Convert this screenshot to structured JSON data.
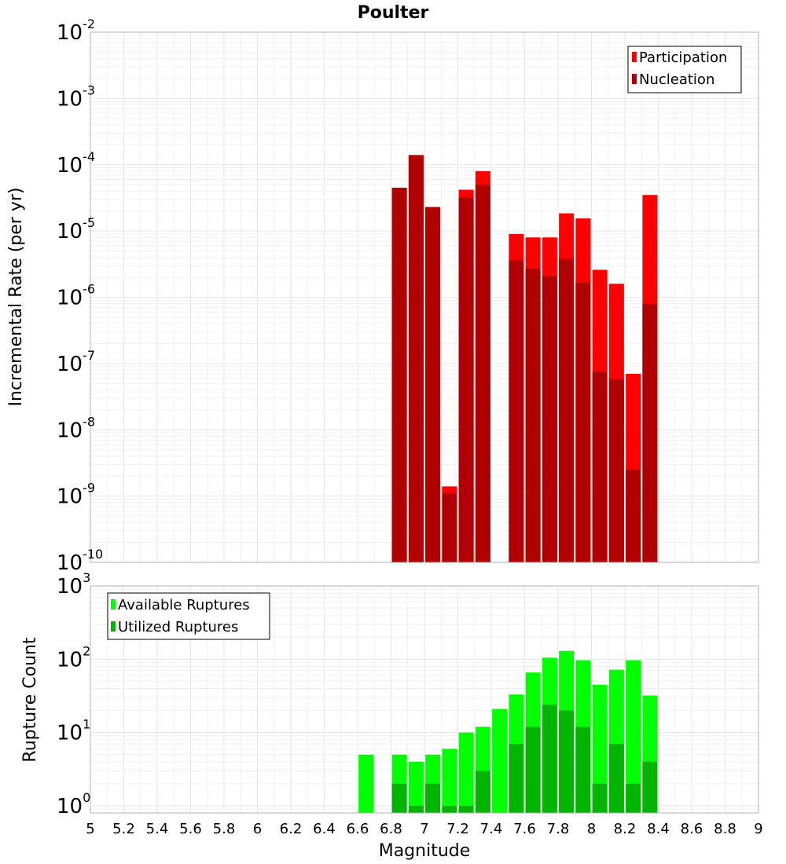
{
  "chart_data": [
    {
      "type": "bar",
      "title": "Poulter",
      "xlabel": "",
      "ylabel": "Incremental Rate (per yr)",
      "y_scale": "log",
      "ylim": [
        1e-10,
        0.01
      ],
      "xlim": [
        5,
        9
      ],
      "grid": true,
      "legend_position": "top-right",
      "x": [
        6.85,
        6.95,
        7.05,
        7.15,
        7.25,
        7.35,
        7.55,
        7.65,
        7.75,
        7.85,
        7.95,
        8.05,
        8.15,
        8.25,
        8.35
      ],
      "series": [
        {
          "name": "Participation",
          "color": "#ff0000",
          "values": [
            4.5e-05,
            0.00014,
            2.3e-05,
            1.4e-09,
            4.2e-05,
            8e-05,
            9e-06,
            8e-06,
            8e-06,
            1.85e-05,
            1.55e-05,
            2.6e-06,
            1.6e-06,
            7e-08,
            3.5e-05
          ]
        },
        {
          "name": "Nucleation",
          "color": "#b00000",
          "values": [
            4.5e-05,
            0.00014,
            2.3e-05,
            1.1e-09,
            3.2e-05,
            5e-05,
            3.6e-06,
            2.7e-06,
            2.1e-06,
            3.8e-06,
            1.65e-06,
            7.5e-08,
            5.8e-08,
            2.5e-09,
            8e-07
          ]
        }
      ]
    },
    {
      "type": "bar",
      "title": "",
      "xlabel": "Magnitude",
      "ylabel": "Rupture Count",
      "y_scale": "log",
      "ylim": [
        0.8,
        1000
      ],
      "xlim": [
        5,
        9
      ],
      "grid": true,
      "legend_position": "top-left",
      "x": [
        6.65,
        6.85,
        6.95,
        7.05,
        7.15,
        7.25,
        7.35,
        7.45,
        7.55,
        7.65,
        7.75,
        7.85,
        7.95,
        8.05,
        8.15,
        8.25,
        8.35
      ],
      "series": [
        {
          "name": "Available Ruptures",
          "color": "#00ff00",
          "values": [
            5,
            5,
            4,
            5,
            6,
            10,
            12,
            21,
            33,
            66,
            105,
            130,
            97,
            45,
            72,
            97,
            32
          ]
        },
        {
          "name": "Utilized Ruptures",
          "color": "#00b400",
          "values": [
            0,
            2,
            1,
            2,
            1,
            1,
            3,
            0,
            7,
            12,
            24,
            20,
            12,
            2,
            7,
            2,
            4
          ]
        }
      ]
    }
  ],
  "x_ticks": [
    "5",
    "5.2",
    "5.4",
    "5.6",
    "5.8",
    "6",
    "6.2",
    "6.4",
    "6.6",
    "6.8",
    "7",
    "7.2",
    "7.4",
    "7.6",
    "7.8",
    "8",
    "8.2",
    "8.4",
    "8.6",
    "8.8",
    "9"
  ],
  "top_y_ticks": [
    {
      "base": "10",
      "exp": "-2"
    },
    {
      "base": "10",
      "exp": "-3"
    },
    {
      "base": "10",
      "exp": "-4"
    },
    {
      "base": "10",
      "exp": "-5"
    },
    {
      "base": "10",
      "exp": "-6"
    },
    {
      "base": "10",
      "exp": "-7"
    },
    {
      "base": "10",
      "exp": "-8"
    },
    {
      "base": "10",
      "exp": "-9"
    },
    {
      "base": "10",
      "exp": "-10"
    }
  ],
  "bottom_y_ticks": [
    {
      "base": "10",
      "exp": "3"
    },
    {
      "base": "10",
      "exp": "2"
    },
    {
      "base": "10",
      "exp": "1"
    },
    {
      "base": "10",
      "exp": "0"
    }
  ]
}
